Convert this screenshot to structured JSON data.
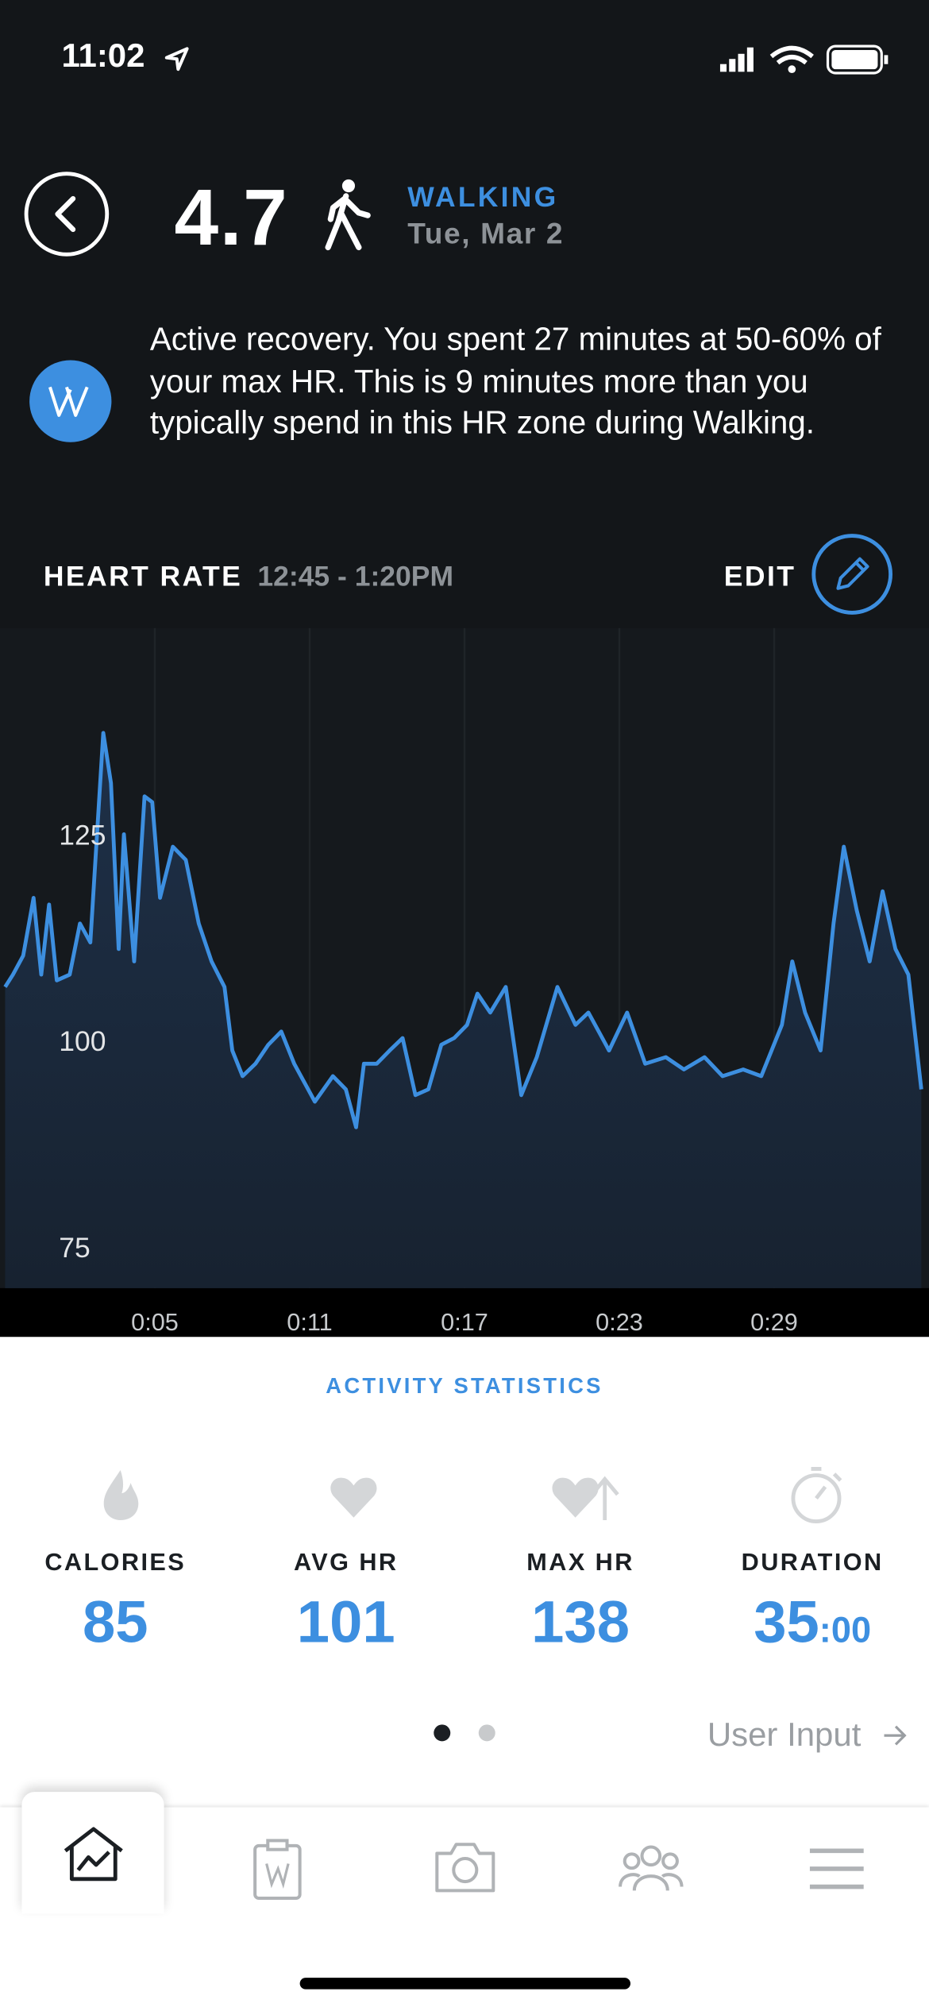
{
  "status": {
    "time": "11:02"
  },
  "header": {
    "score": "4.7",
    "activity": "WALKING",
    "date": "Tue, Mar 2"
  },
  "insight": "Active recovery. You spent 27 minutes at 50-60% of your max HR. This is 9 minutes more than you typically spend in this HR zone during Walking.",
  "edit": "EDIT",
  "chart_data": {
    "type": "line",
    "title": "HEART RATE",
    "subtitle": "12:45 - 1:20PM",
    "xlim": [
      -1,
      35
    ],
    "ylim": [
      70,
      150
    ],
    "xticks": [
      {
        "value": 5,
        "label": "0:05"
      },
      {
        "value": 11,
        "label": "0:11"
      },
      {
        "value": 17,
        "label": "0:17"
      },
      {
        "value": 23,
        "label": "0:23"
      },
      {
        "value": 29,
        "label": "0:29"
      }
    ],
    "yticks": [
      75,
      100,
      125
    ],
    "grid": true,
    "series": [
      {
        "color": "#3d8fe0",
        "x": [
          -0.8,
          -0.5,
          -0.1,
          0.3,
          0.6,
          0.9,
          1.2,
          1.7,
          2.1,
          2.5,
          3.0,
          3.3,
          3.6,
          3.8,
          4.2,
          4.6,
          4.9,
          5.2,
          5.7,
          6.2,
          6.7,
          7.2,
          7.7,
          8.0,
          8.4,
          8.9,
          9.4,
          9.9,
          10.4,
          11.2,
          11.9,
          12.4,
          12.8,
          13.1,
          13.6,
          14.1,
          14.6,
          15.1,
          15.6,
          16.1,
          16.6,
          17.1,
          17.5,
          18.0,
          18.6,
          19.2,
          19.8,
          20.6,
          21.3,
          21.8,
          22.6,
          23.3,
          24.0,
          24.8,
          25.5,
          26.3,
          27.0,
          27.8,
          28.5,
          29.3,
          29.7,
          30.2,
          30.8,
          31.3,
          31.7,
          32.2,
          32.7,
          33.2,
          33.7,
          34.2,
          34.7
        ],
        "values": [
          106.5,
          108,
          110.3,
          117.3,
          108,
          116.5,
          107.3,
          108,
          114.2,
          111.9,
          137.3,
          131.2,
          111.1,
          125,
          109.6,
          129.6,
          128.9,
          117.3,
          123.5,
          121.9,
          114.2,
          109.6,
          106.5,
          98.8,
          95.7,
          97.2,
          99.5,
          101.1,
          97.2,
          92.6,
          95.7,
          94.1,
          89.5,
          97.2,
          97.2,
          98.8,
          100.3,
          93.4,
          94.1,
          99.5,
          100.3,
          101.9,
          105.7,
          103.4,
          106.5,
          93.4,
          98,
          106.5,
          101.9,
          103.4,
          98.8,
          103.4,
          97.2,
          98,
          96.5,
          98,
          95.7,
          96.5,
          95.7,
          101.9,
          109.6,
          103.4,
          98.8,
          114.2,
          123.5,
          115.8,
          109.6,
          118.1,
          111.1,
          108,
          94.1
        ]
      }
    ]
  },
  "stats": {
    "title": "ACTIVITY STATISTICS",
    "items": [
      {
        "label": "CALORIES",
        "value": 85
      },
      {
        "label": "AVG HR",
        "value": 101
      },
      {
        "label": "MAX HR",
        "value": 138
      },
      {
        "label": "DURATION",
        "value": 35,
        "suffix": ":00"
      }
    ]
  },
  "user_input": "User Input"
}
